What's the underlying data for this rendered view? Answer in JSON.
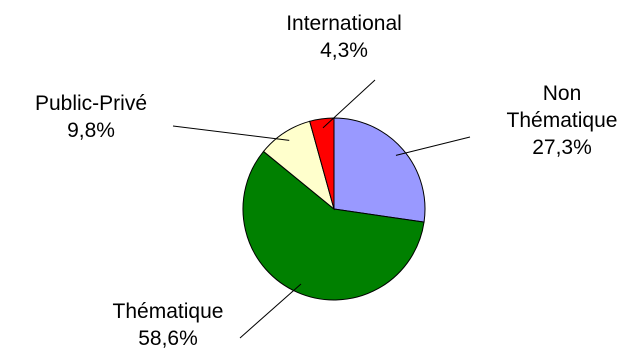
{
  "chart_data": {
    "type": "pie",
    "slices": [
      {
        "name": "Non Thématique",
        "label_lines": [
          "Non",
          "Thématique"
        ],
        "value": 27.3,
        "value_label": "27,3%",
        "color": "#9999ff"
      },
      {
        "name": "Thématique",
        "label_lines": [
          "Thématique"
        ],
        "value": 58.6,
        "value_label": "58,6%",
        "color": "#008000"
      },
      {
        "name": "Public-Privé",
        "label_lines": [
          "Public-Privé"
        ],
        "value": 9.8,
        "value_label": "9,8%",
        "color": "#ffffcc"
      },
      {
        "name": "International",
        "label_lines": [
          "International"
        ],
        "value": 4.3,
        "value_label": "4,3%",
        "color": "#ff0000"
      }
    ],
    "start": "top",
    "direction": "clockwise",
    "legend": "none"
  }
}
